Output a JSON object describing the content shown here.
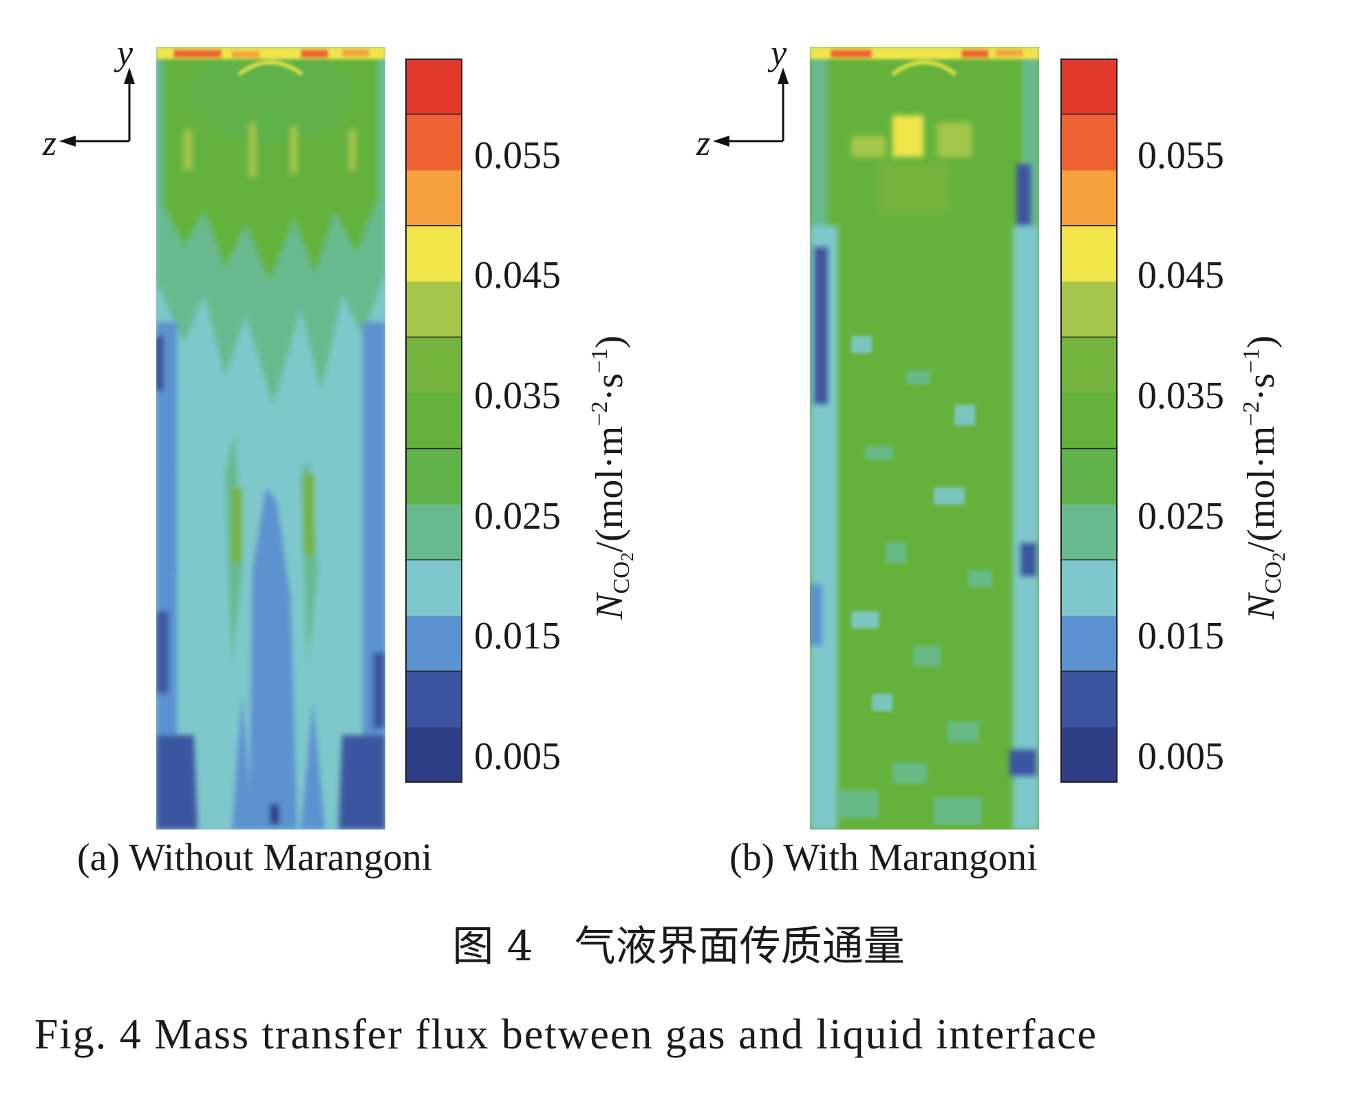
{
  "axes": {
    "vertical": "y",
    "horizontal": "z"
  },
  "colorbar": {
    "tick_labels": [
      "0.055",
      "0.045",
      "0.035",
      "0.025",
      "0.015",
      "0.005"
    ],
    "title_symbol": "N",
    "title_sub_main": "CO",
    "title_sub_index": "2",
    "title_unit_open": "/(mol·m",
    "title_exp1": "−2",
    "title_mid": "·s",
    "title_exp2": "−1",
    "title_close": ")",
    "colors": [
      "#2d3d86",
      "#3c55a0",
      "#5b92cf",
      "#7ec8cc",
      "#68ba8e",
      "#5fb148",
      "#64b23c",
      "#74b33d",
      "#a5c64b",
      "#f0e64c",
      "#f4a03c",
      "#ec6232",
      "#e1382c"
    ]
  },
  "panels": [
    {
      "caption": "(a) Without Marangoni"
    },
    {
      "caption": "(b) With Marangoni"
    }
  ],
  "figure_caption_cn": "图 4　气液界面传质通量",
  "figure_caption_en": "Fig. 4  Mass transfer flux between gas and liquid interface"
}
